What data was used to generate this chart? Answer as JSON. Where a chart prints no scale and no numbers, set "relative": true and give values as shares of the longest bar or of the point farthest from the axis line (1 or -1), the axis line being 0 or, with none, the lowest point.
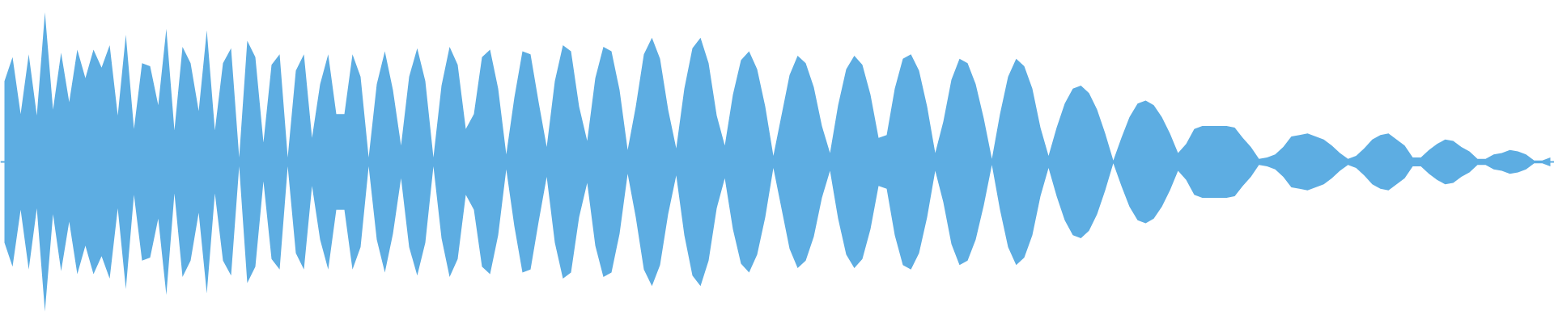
{
  "chart_data": {
    "type": "area",
    "relative": true,
    "ref_lines": [
      {
        "axis": "y",
        "value": 0,
        "color": "#5dade2"
      }
    ],
    "categories": [
      null,
      null,
      null,
      null,
      null,
      null,
      null,
      null,
      null,
      null,
      null,
      null,
      null,
      null,
      null,
      null,
      null,
      null,
      null,
      null,
      null,
      null,
      null,
      null,
      null,
      null,
      null,
      null,
      null,
      null,
      null,
      null,
      null,
      null,
      null,
      null,
      null,
      null,
      null,
      null,
      null,
      null,
      null,
      null,
      null,
      null,
      null,
      null,
      null,
      null,
      null,
      null,
      null,
      null,
      null,
      null,
      null,
      null,
      null,
      null,
      null,
      null,
      null,
      null,
      null,
      null,
      null,
      null,
      null,
      null,
      null,
      null,
      null,
      null,
      null,
      null,
      null,
      null,
      null,
      null,
      null,
      null,
      null,
      null,
      null,
      null,
      null,
      null,
      null,
      null,
      null,
      null,
      null,
      null,
      null,
      null,
      null,
      null,
      null,
      null,
      null,
      null,
      null,
      null,
      null,
      null,
      null,
      null,
      null,
      null,
      null,
      null,
      null,
      null,
      null,
      null,
      null,
      null,
      null,
      null,
      null,
      null,
      null,
      null,
      null,
      null,
      null,
      null,
      null,
      null,
      null,
      null,
      null,
      null,
      null,
      null,
      null,
      null,
      null,
      null,
      null,
      null,
      null,
      null,
      null,
      null,
      null,
      null,
      null,
      null,
      null,
      null,
      null,
      null,
      null,
      null,
      null,
      null,
      null,
      null,
      null,
      null,
      null,
      null,
      null,
      null,
      null,
      null,
      null,
      null,
      null,
      null,
      null,
      null,
      null,
      null,
      null,
      null,
      null,
      null,
      null,
      null,
      null,
      null,
      null,
      null,
      null,
      null,
      null,
      null,
      null,
      null
    ],
    "series": [
      {
        "color": "#5dade2",
        "values": [
          0.54,
          0.7,
          0.32,
          0.72,
          0.31,
          1.0,
          0.35,
          0.73,
          0.4,
          0.75,
          0.56,
          0.75,
          0.63,
          0.78,
          0.31,
          0.85,
          0.22,
          0.66,
          0.64,
          0.38,
          0.89,
          0.21,
          0.77,
          0.66,
          0.34,
          0.88,
          0.21,
          0.66,
          0.76,
          0.03,
          0.81,
          0.7,
          0.13,
          0.65,
          0.72,
          0.03,
          0.61,
          0.72,
          0.16,
          0.52,
          0.72,
          0.32,
          0.32,
          0.72,
          0.57,
          0.03,
          0.52,
          0.74,
          0.48,
          0.11,
          0.57,
          0.76,
          0.54,
          0.03,
          0.51,
          0.77,
          0.65,
          0.22,
          0.32,
          0.7,
          0.75,
          0.49,
          0.05,
          0.43,
          0.74,
          0.72,
          0.4,
          0.1,
          0.54,
          0.78,
          0.74,
          0.37,
          0.14,
          0.56,
          0.77,
          0.74,
          0.48,
          0.08,
          0.37,
          0.72,
          0.83,
          0.69,
          0.35,
          0.09,
          0.49,
          0.76,
          0.83,
          0.66,
          0.31,
          0.11,
          0.45,
          0.68,
          0.74,
          0.62,
          0.37,
          0.04,
          0.31,
          0.58,
          0.71,
          0.66,
          0.5,
          0.24,
          0.06,
          0.38,
          0.62,
          0.71,
          0.65,
          0.45,
          0.16,
          0.18,
          0.49,
          0.69,
          0.72,
          0.61,
          0.37,
          0.06,
          0.27,
          0.55,
          0.69,
          0.66,
          0.52,
          0.29,
          0.02,
          0.32,
          0.57,
          0.69,
          0.64,
          0.49,
          0.23,
          0.04,
          0.23,
          0.39,
          0.49,
          0.51,
          0.46,
          0.35,
          0.19,
          0.01,
          0.16,
          0.3,
          0.39,
          0.41,
          0.38,
          0.3,
          0.19,
          0.06,
          0.12,
          0.22,
          0.24,
          0.24,
          0.24,
          0.24,
          0.23,
          0.16,
          0.1,
          0.02,
          0.03,
          0.05,
          0.1,
          0.17,
          0.18,
          0.19,
          0.17,
          0.15,
          0.11,
          0.06,
          0.02,
          0.04,
          0.09,
          0.15,
          0.18,
          0.19,
          0.15,
          0.11,
          0.03,
          0.03,
          0.08,
          0.12,
          0.15,
          0.14,
          0.1,
          0.07,
          0.02,
          0.02,
          0.05,
          0.06,
          0.08,
          0.07,
          0.05,
          0.01,
          0.01,
          0.03
        ]
      },
      {
        "color": "#5dade2",
        "values": [
          -0.54,
          -0.7,
          -0.32,
          -0.72,
          -0.31,
          -1.0,
          -0.35,
          -0.73,
          -0.4,
          -0.75,
          -0.56,
          -0.75,
          -0.63,
          -0.78,
          -0.31,
          -0.85,
          -0.22,
          -0.66,
          -0.64,
          -0.38,
          -0.89,
          -0.21,
          -0.77,
          -0.66,
          -0.34,
          -0.88,
          -0.21,
          -0.66,
          -0.76,
          -0.03,
          -0.81,
          -0.7,
          -0.13,
          -0.65,
          -0.72,
          -0.03,
          -0.61,
          -0.72,
          -0.16,
          -0.52,
          -0.72,
          -0.32,
          -0.32,
          -0.72,
          -0.57,
          -0.03,
          -0.52,
          -0.74,
          -0.48,
          -0.11,
          -0.57,
          -0.76,
          -0.54,
          -0.03,
          -0.51,
          -0.77,
          -0.65,
          -0.22,
          -0.32,
          -0.7,
          -0.75,
          -0.49,
          -0.05,
          -0.43,
          -0.74,
          -0.72,
          -0.4,
          -0.1,
          -0.54,
          -0.78,
          -0.74,
          -0.37,
          -0.14,
          -0.56,
          -0.77,
          -0.74,
          -0.48,
          -0.08,
          -0.37,
          -0.72,
          -0.83,
          -0.69,
          -0.35,
          -0.09,
          -0.49,
          -0.76,
          -0.83,
          -0.66,
          -0.31,
          -0.11,
          -0.45,
          -0.68,
          -0.74,
          -0.62,
          -0.37,
          -0.04,
          -0.31,
          -0.58,
          -0.71,
          -0.66,
          -0.5,
          -0.24,
          -0.06,
          -0.38,
          -0.62,
          -0.71,
          -0.65,
          -0.45,
          -0.16,
          -0.18,
          -0.49,
          -0.69,
          -0.72,
          -0.61,
          -0.37,
          -0.06,
          -0.27,
          -0.55,
          -0.69,
          -0.66,
          -0.52,
          -0.29,
          -0.02,
          -0.32,
          -0.57,
          -0.69,
          -0.64,
          -0.49,
          -0.23,
          -0.04,
          -0.23,
          -0.39,
          -0.49,
          -0.51,
          -0.46,
          -0.35,
          -0.19,
          -0.01,
          -0.16,
          -0.3,
          -0.39,
          -0.41,
          -0.38,
          -0.3,
          -0.19,
          -0.06,
          -0.12,
          -0.22,
          -0.24,
          -0.24,
          -0.24,
          -0.24,
          -0.23,
          -0.16,
          -0.1,
          -0.02,
          -0.03,
          -0.05,
          -0.1,
          -0.17,
          -0.18,
          -0.19,
          -0.17,
          -0.15,
          -0.11,
          -0.06,
          -0.02,
          -0.04,
          -0.09,
          -0.15,
          -0.18,
          -0.19,
          -0.15,
          -0.11,
          -0.03,
          -0.03,
          -0.08,
          -0.12,
          -0.15,
          -0.14,
          -0.1,
          -0.07,
          -0.02,
          -0.02,
          -0.05,
          -0.06,
          -0.08,
          -0.07,
          -0.05,
          -0.01,
          -0.01,
          -0.03
        ]
      }
    ]
  }
}
